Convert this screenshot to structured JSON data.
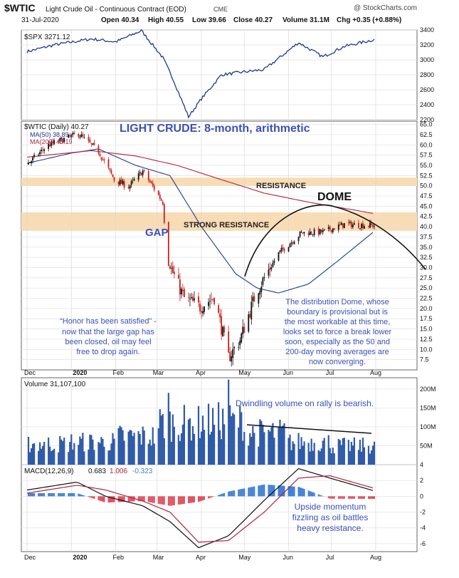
{
  "header": {
    "symbol": "$WTIC",
    "name": "Light Crude Oil - Continuous Contract (EOD)",
    "exchange": "CME",
    "credit": "@ StockCharts.com",
    "date": "31-Jul-2020",
    "open": "Open 40.34",
    "high": "High 40.55",
    "low": "Low 39.66",
    "close": "Close 40.27",
    "volume": "Volume 31.1M",
    "chg": "Chg +0.35 (+0.88%)"
  },
  "colors": {
    "background": "#ffffff",
    "price_line": "#1e3a8a",
    "ma50": "#1e3a8a",
    "ma200": "#b0233c",
    "resistance_band": "#f9dcb3",
    "annotation_blue": "#3a50b8",
    "volume_bar": "#2f5aa8",
    "macd_hist_pos": "#3f7fd6",
    "macd_hist_neg": "#e05060",
    "candle_up": "#111111",
    "candle_down": "#cc1f1f"
  },
  "x_axis_labels": [
    "Dec",
    "2020",
    "Feb",
    "Mar",
    "Apr",
    "May",
    "Jun",
    "Jul",
    "Aug"
  ],
  "chart_data": [
    {
      "type": "line",
      "legend": "$SPX 3271.12",
      "ylim": [
        2200,
        3400
      ],
      "y_ticks": [
        "3400",
        "3200",
        "3000",
        "2800",
        "2600",
        "2400",
        "2200"
      ],
      "series": [
        {
          "name": "$SPX",
          "x": [
            "2019-12-01",
            "2019-12-20",
            "2020-01-15",
            "2020-02-01",
            "2020-02-19",
            "2020-03-05",
            "2020-03-12",
            "2020-03-23",
            "2020-04-01",
            "2020-04-15",
            "2020-05-01",
            "2020-05-15",
            "2020-06-08",
            "2020-06-25",
            "2020-07-10",
            "2020-07-31"
          ],
          "values": [
            3110,
            3200,
            3280,
            3240,
            3390,
            3030,
            2750,
            2240,
            2480,
            2800,
            2840,
            2870,
            3230,
            3040,
            3180,
            3271
          ]
        }
      ]
    },
    {
      "type": "line",
      "title": "LIGHT CRUDE: 8-month, arithmetic",
      "legend": [
        "$WTIC (Daily) 40.27",
        "MA(50) 38.89",
        "MA(200) 43.19"
      ],
      "ylim": [
        5,
        65
      ],
      "y_ticks": [
        "65.0",
        "62.5",
        "60.0",
        "57.5",
        "55.0",
        "52.5",
        "50.0",
        "47.5",
        "45.0",
        "42.5",
        "40.0",
        "37.5",
        "35.0",
        "32.5",
        "30.0",
        "27.5",
        "25.0",
        "22.5",
        "20.0",
        "17.5",
        "15.0",
        "12.5",
        "10.0",
        "7.5"
      ],
      "series": [
        {
          "name": "$WTIC",
          "x": [
            "2019-12-01",
            "2019-12-15",
            "2020-01-06",
            "2020-01-20",
            "2020-01-31",
            "2020-02-10",
            "2020-02-20",
            "2020-03-05",
            "2020-03-06",
            "2020-03-09",
            "2020-03-20",
            "2020-03-31",
            "2020-04-10",
            "2020-04-20",
            "2020-04-28",
            "2020-05-10",
            "2020-05-25",
            "2020-06-10",
            "2020-06-25",
            "2020-07-10",
            "2020-07-31"
          ],
          "values": [
            55.2,
            59.8,
            62.7,
            58.4,
            51.5,
            49.8,
            53.6,
            46.0,
            41.6,
            31.1,
            22.5,
            20.4,
            22.8,
            8.0,
            12.3,
            24.5,
            33.5,
            38.5,
            38.7,
            40.6,
            40.27
          ]
        },
        {
          "name": "MA(50)",
          "x": [
            "2019-12-01",
            "2020-01-01",
            "2020-01-20",
            "2020-02-15",
            "2020-03-10",
            "2020-04-01",
            "2020-04-25",
            "2020-05-10",
            "2020-05-25",
            "2020-06-15",
            "2020-07-05",
            "2020-07-31"
          ],
          "values": [
            55.5,
            58.0,
            59.0,
            55.0,
            52.5,
            40.0,
            28.5,
            25.0,
            23.8,
            26.0,
            31.5,
            38.89
          ]
        },
        {
          "name": "MA(200)",
          "x": [
            "2019-12-01",
            "2020-01-15",
            "2020-02-15",
            "2020-03-15",
            "2020-04-15",
            "2020-05-15",
            "2020-06-15",
            "2020-07-15",
            "2020-07-31"
          ],
          "values": [
            57.0,
            58.6,
            57.3,
            55.0,
            51.5,
            48.2,
            46.0,
            44.2,
            43.19
          ]
        }
      ],
      "annotations": [
        "RESISTANCE",
        "STRONG RESISTANCE",
        "DOME",
        "GAP"
      ],
      "bands": [
        {
          "label": "RESISTANCE",
          "from": 50.0,
          "to": 52.0
        },
        {
          "label": "STRONG RESISTANCE",
          "from": 39.0,
          "to": 43.5
        }
      ],
      "notes": [
        "“Honor has been satisfied” -",
        "now that the large gap has",
        "been closed, oil may feel",
        "free to drop again.",
        "The distribution Dome, whose",
        "boundary is provisional but is",
        "the most workable at this time,",
        "looks set to force a break lower",
        "soon, especially as the 50 and",
        "200-day moving averages are",
        "now converging."
      ]
    },
    {
      "type": "bar",
      "legend": "Volume 31,107,100",
      "ylim": [
        0,
        230
      ],
      "y_ticks": [
        "200M",
        "150M",
        "100M",
        "50M"
      ],
      "annotation": "Dwindling volume on rally is bearish.",
      "series": [
        {
          "name": "Volume",
          "x": [
            "2019-12",
            "2020-01",
            "2020-02",
            "2020-03",
            "2020-04",
            "2020-05",
            "2020-06",
            "2020-07"
          ],
          "values": [
            55,
            60,
            75,
            110,
            115,
            85,
            60,
            50
          ]
        }
      ]
    },
    {
      "type": "line",
      "legend": [
        "MACD(12,26,9)",
        "0.683",
        "1.006",
        "-0.323"
      ],
      "ylim": [
        -7,
        4
      ],
      "y_ticks": [
        "4",
        "2",
        "0",
        "-2",
        "-4",
        "-6"
      ],
      "annotation": [
        "Upside momentum",
        "fizzling as oil battles",
        "heavy  resistance."
      ],
      "series": [
        {
          "name": "MACD",
          "x": [
            "2019-12-01",
            "2020-01-05",
            "2020-01-25",
            "2020-02-20",
            "2020-03-10",
            "2020-03-30",
            "2020-04-20",
            "2020-05-15",
            "2020-06-08",
            "2020-06-30",
            "2020-07-31"
          ],
          "values": [
            0.8,
            1.8,
            0.0,
            -1.2,
            -3.2,
            -6.5,
            -5.0,
            -0.5,
            3.5,
            2.3,
            0.683
          ]
        },
        {
          "name": "Signal",
          "x": [
            "2019-12-01",
            "2020-01-05",
            "2020-01-25",
            "2020-02-20",
            "2020-03-10",
            "2020-03-30",
            "2020-04-20",
            "2020-05-15",
            "2020-06-08",
            "2020-06-30",
            "2020-07-31"
          ],
          "values": [
            0.4,
            1.4,
            0.8,
            -0.6,
            -2.0,
            -5.8,
            -5.6,
            -2.0,
            2.3,
            2.6,
            1.006
          ]
        }
      ]
    }
  ]
}
